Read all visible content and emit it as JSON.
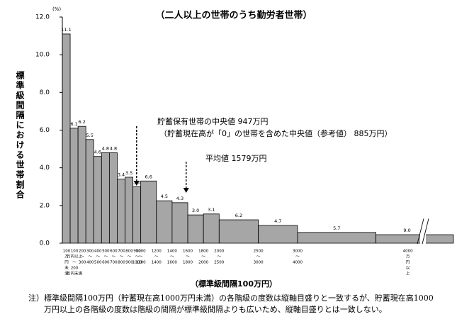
{
  "chart_data": {
    "type": "histogram",
    "title": "（二人以上の世帯のうち勤労者世帯）",
    "y_unit": "(%)",
    "ylabel": "標準級間隔における世帯割合",
    "xlabel": "（標準級間隔100万円）",
    "bins": [
      0,
      100,
      200,
      300,
      400,
      500,
      600,
      700,
      800,
      900,
      1000,
      1200,
      1400,
      1600,
      1800,
      2000,
      2500,
      3000,
      4000,
      null
    ],
    "standard_interval": 100,
    "values": [
      11.1,
      6.1,
      6.2,
      5.5,
      4.6,
      4.8,
      4.8,
      3.4,
      3.5,
      3.0,
      6.6,
      4.5,
      4.3,
      3.0,
      3.1,
      6.2,
      4.7,
      5.7,
      9.0
    ],
    "value_labels": [
      "11.1",
      "6.1",
      "6.2",
      "5.5",
      "4.6",
      "4.8",
      "4.8",
      "3.4",
      "3.5",
      "3.0",
      "6.6",
      "4.5",
      "4.3",
      "3.0",
      "3.1",
      "6.2",
      "4.7",
      "5.7",
      "9.0"
    ],
    "bin_labels": [
      [
        "100",
        "万",
        "円",
        "未",
        "満"
      ],
      [
        "100",
        "万円以上",
        "〜",
        "200",
        "万円未満"
      ],
      [
        "200",
        "〜",
        "300"
      ],
      [
        "300",
        "〜",
        "400"
      ],
      [
        "400",
        "〜",
        "500"
      ],
      [
        "500",
        "〜",
        "600"
      ],
      [
        "600",
        "〜",
        "700"
      ],
      [
        "700",
        "〜",
        "800"
      ],
      [
        "800",
        "〜",
        "900"
      ],
      [
        "900",
        "〜",
        "1000"
      ],
      [
        "1000",
        "〜",
        "1200"
      ],
      [
        "1200",
        "〜",
        "1400"
      ],
      [
        "1400",
        "〜",
        "1600"
      ],
      [
        "1600",
        "〜",
        "1800"
      ],
      [
        "1800",
        "〜",
        "2000"
      ],
      [
        "2000",
        "〜",
        "2500"
      ],
      [
        "2500",
        "〜",
        "3000"
      ],
      [
        "3000",
        "〜",
        "4000"
      ],
      [
        "4000",
        "万",
        "円",
        "以",
        "上"
      ]
    ],
    "color": "#a6a6a6",
    "xlim": [
      0,
      6000
    ],
    "xbreak": 4600,
    "ylim": [
      0,
      12
    ],
    "yticks": [
      {
        "value": 0,
        "label": "0.0"
      },
      {
        "value": 2,
        "label": "2.0"
      },
      {
        "value": 4,
        "label": "4.0"
      },
      {
        "value": 6,
        "label": "6.0"
      },
      {
        "value": 8,
        "label": "8.0"
      },
      {
        "value": 10,
        "label": "10.0"
      },
      {
        "value": 12,
        "label": "12.0"
      }
    ],
    "markers": [
      {
        "x": 947,
        "lines": [
          "貯蓄保有世帯の中央値 947万円",
          "（貯蓄現在高が「0」の世帯を含めた中央値（参考値） 885万円）"
        ]
      },
      {
        "x": 1579,
        "lines": [
          "平均値 1579万円"
        ]
      }
    ],
    "note": [
      "注）標準級間隔100万円（貯蓄現在高1000万円未満）の各階級の度数は縦軸目盛りと一致するが、貯蓄現在高1000",
      "万円以上の各階級の度数は階級の間隔が標準級間隔よりも広いため、縦軸目盛りとは一致しない。"
    ]
  }
}
